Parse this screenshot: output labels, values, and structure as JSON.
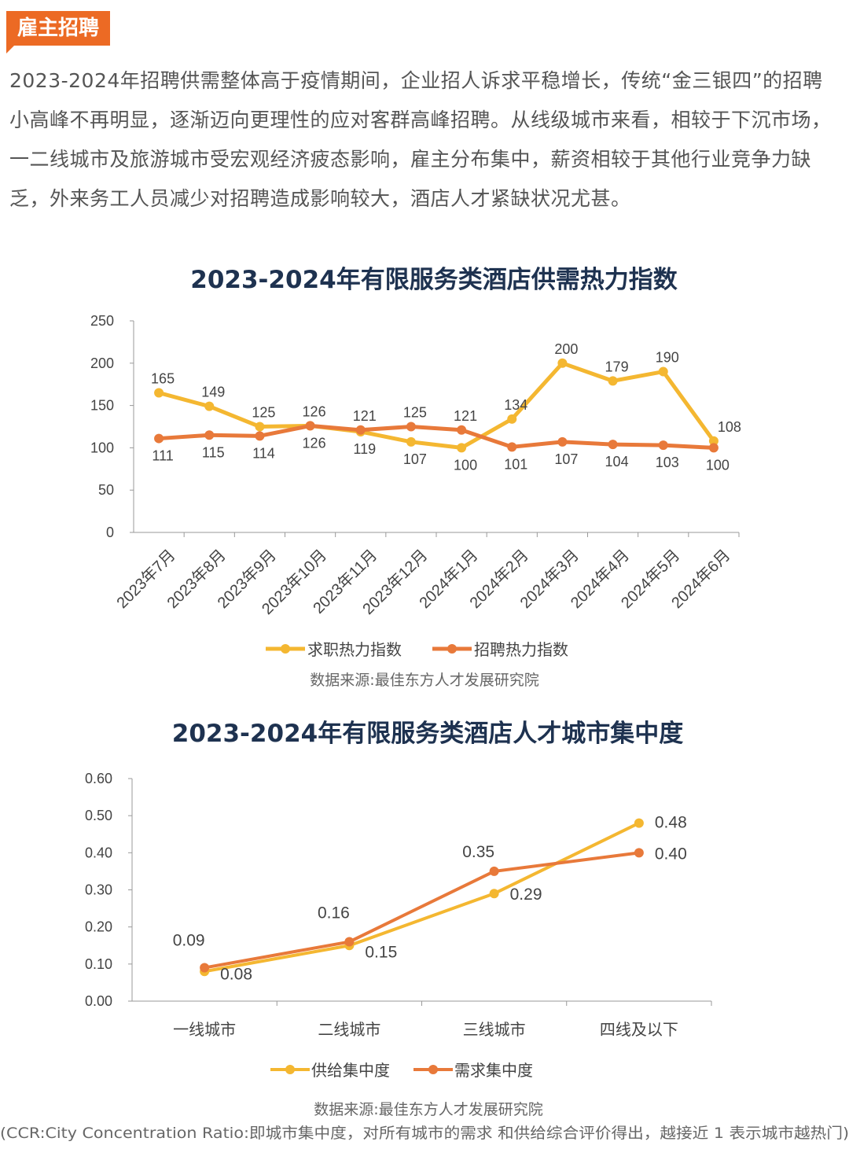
{
  "header": {
    "badge": "雇主招聘"
  },
  "paragraph": "2023-2024年招聘供需整体高于疫情期间，企业招人诉求平稳增长，传统“金三银四”的招聘小高峰不再明显，逐渐迈向更理性的应对客群高峰招聘。从线级城市来看，相较于下沉市场，一二线城市及旅游城市受宏观经济疲态影响，雇主分布集中，薪资相较于其他行业竞争力缺乏，外来务工人员减少对招聘造成影响较大，酒店人才紧缺状况尤甚。",
  "colors": {
    "yellow": "#f4b731",
    "orange": "#e8793a",
    "title": "#1e3250",
    "badge": "#ec6a24"
  },
  "chart_data": [
    {
      "type": "line",
      "title": "2023-2024年有限服务类酒店供需热力指数",
      "categories": [
        "2023年7月",
        "2023年8月",
        "2023年9月",
        "2023年10月",
        "2023年11月",
        "2023年12月",
        "2024年1月",
        "2024年2月",
        "2024年3月",
        "2024年4月",
        "2024年5月",
        "2024年6月"
      ],
      "ylim": [
        0,
        250
      ],
      "yticks": [
        0,
        50,
        100,
        150,
        200,
        250
      ],
      "series": [
        {
          "name": "求职热力指数",
          "color": "#f4b731",
          "values": [
            165,
            149,
            125,
            126,
            119,
            107,
            100,
            134,
            200,
            179,
            190,
            108
          ]
        },
        {
          "name": "招聘热力指数",
          "color": "#e8793a",
          "values": [
            111,
            115,
            114,
            126,
            121,
            125,
            121,
            101,
            107,
            104,
            103,
            100
          ]
        }
      ],
      "legend": "bottom",
      "source": "数据来源:最佳东方人才发展研究院"
    },
    {
      "type": "line",
      "title": "2023-2024年有限服务类酒店人才城市集中度",
      "categories": [
        "一线城市",
        "二线城市",
        "三线城市",
        "四线及以下"
      ],
      "ylim": [
        0,
        0.6
      ],
      "yticks": [
        "0.00",
        "0.10",
        "0.20",
        "0.30",
        "0.40",
        "0.50",
        "0.60"
      ],
      "series": [
        {
          "name": "供给集中度",
          "color": "#f4b731",
          "values": [
            0.08,
            0.15,
            0.29,
            0.48
          ]
        },
        {
          "name": "需求集中度",
          "color": "#e8793a",
          "values": [
            0.09,
            0.16,
            0.35,
            0.4
          ]
        }
      ],
      "legend": "bottom",
      "source": "数据来源:最佳东方人才发展研究院",
      "note": "(CCR:City Concentration Ratio:即城市集中度，对所有城市的需求 和供给综合评价得出，越接近 1 表示城市越热门)"
    }
  ]
}
